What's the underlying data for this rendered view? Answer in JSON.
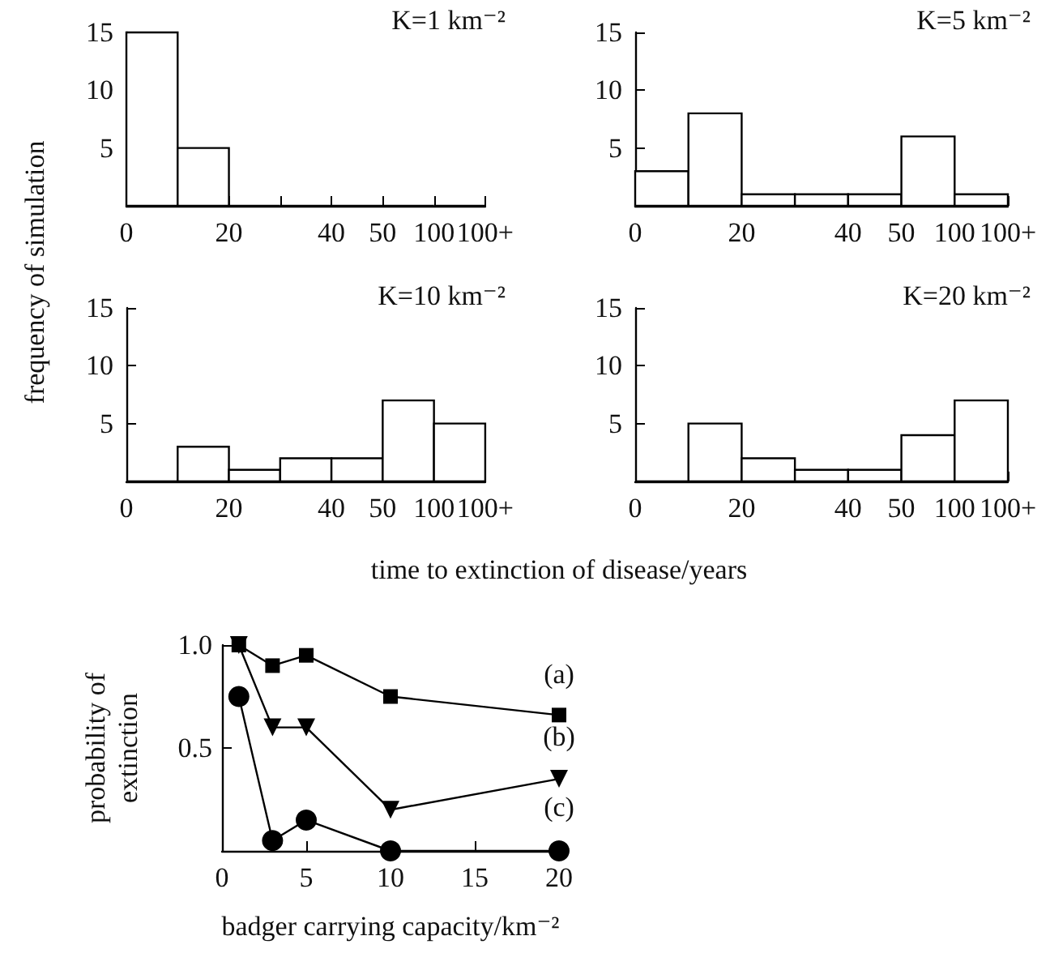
{
  "chart_data": [
    {
      "type": "bar",
      "ylabel": "frequency of simulation",
      "xlabel": "time to extinction of disease/years",
      "annotations": [
        "K=1 km⁻²"
      ],
      "categories": [
        "0",
        null,
        "20",
        null,
        "40",
        "50",
        "100",
        "100+"
      ],
      "values": [
        15,
        5,
        0,
        0,
        0,
        0,
        0,
        null
      ],
      "color": "#ffffff",
      "ylim": [
        0,
        15
      ],
      "yticks": [
        5,
        10,
        15
      ]
    },
    {
      "type": "bar",
      "annotations": [
        "K=5 km⁻²"
      ],
      "categories": [
        "0",
        null,
        "20",
        null,
        "40",
        "50",
        "100",
        "100+"
      ],
      "values": [
        3,
        8,
        1,
        1,
        1,
        6,
        1,
        null
      ],
      "color": "#ffffff",
      "ylim": [
        0,
        15
      ],
      "yticks": [
        5,
        10,
        15
      ]
    },
    {
      "type": "bar",
      "annotations": [
        "K=10 km⁻²"
      ],
      "categories": [
        "0",
        null,
        "20",
        null,
        "40",
        "50",
        "100",
        "100+"
      ],
      "values": [
        0,
        3,
        1,
        2,
        2,
        7,
        5,
        null
      ],
      "color": "#ffffff",
      "ylim": [
        0,
        15
      ],
      "yticks": [
        5,
        10,
        15
      ]
    },
    {
      "type": "bar",
      "annotations": [
        "K=20 km⁻²"
      ],
      "categories": [
        "0",
        null,
        "20",
        null,
        "40",
        "50",
        "100",
        "100+"
      ],
      "values": [
        0,
        5,
        2,
        1,
        1,
        4,
        7,
        null
      ],
      "color": "#ffffff",
      "ylim": [
        0,
        15
      ],
      "yticks": [
        5,
        10,
        15
      ]
    },
    {
      "type": "line",
      "xlabel": "badger carrying capacity/km⁻²",
      "ylabel": "probability of\nextinction",
      "x": [
        1,
        3,
        5,
        10,
        20
      ],
      "series": [
        {
          "name": "(a)",
          "color": "#000000",
          "marker": "square",
          "values": [
            1.0,
            0.9,
            0.95,
            0.75,
            0.66
          ]
        },
        {
          "name": "(b)",
          "color": "#000000",
          "marker": "triangle",
          "values": [
            1.0,
            0.6,
            0.6,
            0.2,
            0.35
          ]
        },
        {
          "name": "(c)",
          "color": "#000000",
          "marker": "circle",
          "values": [
            0.75,
            0.05,
            0.15,
            0,
            0
          ]
        }
      ],
      "xlim": [
        0,
        20
      ],
      "xticks": [
        0,
        5,
        10,
        15,
        20
      ],
      "ylim": [
        0,
        1
      ],
      "yticks": [
        {
          "value": 0.5,
          "label": "0.5"
        },
        {
          "value": 1,
          "label": "1.0"
        }
      ]
    }
  ]
}
